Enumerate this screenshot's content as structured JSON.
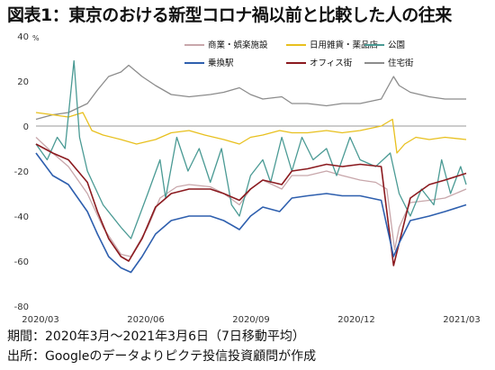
{
  "title": "図表1：東京のおける新型コロナ禍以前と比較した人の往来",
  "footnote_period": "期間：2020年3月～2021年3月6日（7日移動平均）",
  "footnote_source": "出所：Googleのデータよりピクテ投信投資顧問が作成",
  "chart_data": {
    "type": "line",
    "ylabel": "",
    "unit": "%",
    "ylim": [
      -80,
      40
    ],
    "yticks": [
      -80,
      -60,
      -40,
      -20,
      0,
      20,
      40
    ],
    "xticks": [
      "2020/03",
      "2020/06",
      "2020/09",
      "2020/12",
      "2021/03"
    ],
    "xrange": [
      "2020-02-15",
      "2021-03-06"
    ],
    "grid": false,
    "legend_position": "top",
    "series": [
      {
        "name": "商業・娯楽施設",
        "color": "#c8a7ab",
        "points": [
          [
            "2020-02-15",
            -5
          ],
          [
            "2020-03-01",
            -12
          ],
          [
            "2020-03-15",
            -18
          ],
          [
            "2020-04-01",
            -30
          ],
          [
            "2020-04-15",
            -45
          ],
          [
            "2020-05-01",
            -57
          ],
          [
            "2020-05-10",
            -58
          ],
          [
            "2020-05-25",
            -45
          ],
          [
            "2020-06-05",
            -32
          ],
          [
            "2020-06-20",
            -27
          ],
          [
            "2020-07-01",
            -26
          ],
          [
            "2020-07-20",
            -27
          ],
          [
            "2020-08-01",
            -30
          ],
          [
            "2020-08-15",
            -35
          ],
          [
            "2020-08-25",
            -28
          ],
          [
            "2020-09-05",
            -24
          ],
          [
            "2020-09-22",
            -28
          ],
          [
            "2020-10-01",
            -22
          ],
          [
            "2020-10-15",
            -22
          ],
          [
            "2020-11-01",
            -20
          ],
          [
            "2020-11-15",
            -22
          ],
          [
            "2020-12-01",
            -24
          ],
          [
            "2020-12-15",
            -25
          ],
          [
            "2020-12-25",
            -28
          ],
          [
            "2021-01-01",
            -55
          ],
          [
            "2021-01-05",
            -45
          ],
          [
            "2021-01-15",
            -34
          ],
          [
            "2021-02-01",
            -33
          ],
          [
            "2021-02-15",
            -32
          ],
          [
            "2021-03-06",
            -28
          ]
        ]
      },
      {
        "name": "日用雑貨・薬品店",
        "color": "#e8c01e",
        "points": [
          [
            "2020-02-15",
            6
          ],
          [
            "2020-03-01",
            5
          ],
          [
            "2020-03-15",
            4
          ],
          [
            "2020-03-28",
            6
          ],
          [
            "2020-04-05",
            -2
          ],
          [
            "2020-04-15",
            -4
          ],
          [
            "2020-05-01",
            -6
          ],
          [
            "2020-05-15",
            -8
          ],
          [
            "2020-06-01",
            -6
          ],
          [
            "2020-06-15",
            -3
          ],
          [
            "2020-07-01",
            -2
          ],
          [
            "2020-07-15",
            -4
          ],
          [
            "2020-08-01",
            -6
          ],
          [
            "2020-08-15",
            -8
          ],
          [
            "2020-08-25",
            -5
          ],
          [
            "2020-09-05",
            -4
          ],
          [
            "2020-09-20",
            -2
          ],
          [
            "2020-10-01",
            -3
          ],
          [
            "2020-10-15",
            -3
          ],
          [
            "2020-11-01",
            -2
          ],
          [
            "2020-11-15",
            -3
          ],
          [
            "2020-12-01",
            -2
          ],
          [
            "2020-12-20",
            0
          ],
          [
            "2020-12-30",
            3
          ],
          [
            "2021-01-03",
            -12
          ],
          [
            "2021-01-10",
            -8
          ],
          [
            "2021-01-20",
            -5
          ],
          [
            "2021-02-01",
            -6
          ],
          [
            "2021-02-15",
            -5
          ],
          [
            "2021-03-06",
            -6
          ]
        ]
      },
      {
        "name": "公園",
        "color": "#4a9a94",
        "points": [
          [
            "2020-02-15",
            -8
          ],
          [
            "2020-02-25",
            -15
          ],
          [
            "2020-03-05",
            -5
          ],
          [
            "2020-03-12",
            -10
          ],
          [
            "2020-03-20",
            29
          ],
          [
            "2020-03-25",
            -5
          ],
          [
            "2020-04-01",
            -20
          ],
          [
            "2020-04-15",
            -35
          ],
          [
            "2020-05-01",
            -45
          ],
          [
            "2020-05-10",
            -50
          ],
          [
            "2020-05-25",
            -30
          ],
          [
            "2020-06-05",
            -15
          ],
          [
            "2020-06-10",
            -32
          ],
          [
            "2020-06-20",
            -5
          ],
          [
            "2020-06-30",
            -20
          ],
          [
            "2020-07-10",
            -10
          ],
          [
            "2020-07-20",
            -25
          ],
          [
            "2020-07-30",
            -10
          ],
          [
            "2020-08-08",
            -35
          ],
          [
            "2020-08-15",
            -40
          ],
          [
            "2020-08-25",
            -22
          ],
          [
            "2020-09-05",
            -15
          ],
          [
            "2020-09-12",
            -25
          ],
          [
            "2020-09-22",
            -5
          ],
          [
            "2020-10-01",
            -20
          ],
          [
            "2020-10-10",
            -5
          ],
          [
            "2020-10-20",
            -15
          ],
          [
            "2020-11-01",
            -10
          ],
          [
            "2020-11-10",
            -22
          ],
          [
            "2020-11-22",
            -5
          ],
          [
            "2020-12-01",
            -15
          ],
          [
            "2020-12-15",
            -18
          ],
          [
            "2020-12-28",
            -12
          ],
          [
            "2021-01-05",
            -30
          ],
          [
            "2021-01-15",
            -40
          ],
          [
            "2021-01-25",
            -28
          ],
          [
            "2021-02-05",
            -35
          ],
          [
            "2021-02-12",
            -15
          ],
          [
            "2021-02-20",
            -30
          ],
          [
            "2021-03-01",
            -18
          ],
          [
            "2021-03-06",
            -26
          ]
        ]
      },
      {
        "name": "乗換駅",
        "color": "#2e5fae",
        "points": [
          [
            "2020-02-15",
            -12
          ],
          [
            "2020-03-01",
            -22
          ],
          [
            "2020-03-15",
            -26
          ],
          [
            "2020-04-01",
            -38
          ],
          [
            "2020-04-10",
            -48
          ],
          [
            "2020-04-20",
            -58
          ],
          [
            "2020-05-01",
            -63
          ],
          [
            "2020-05-10",
            -65
          ],
          [
            "2020-05-20",
            -58
          ],
          [
            "2020-06-01",
            -48
          ],
          [
            "2020-06-15",
            -42
          ],
          [
            "2020-07-01",
            -40
          ],
          [
            "2020-07-20",
            -40
          ],
          [
            "2020-08-01",
            -42
          ],
          [
            "2020-08-15",
            -46
          ],
          [
            "2020-08-25",
            -40
          ],
          [
            "2020-09-05",
            -36
          ],
          [
            "2020-09-20",
            -38
          ],
          [
            "2020-10-01",
            -32
          ],
          [
            "2020-10-15",
            -31
          ],
          [
            "2020-11-01",
            -30
          ],
          [
            "2020-11-15",
            -31
          ],
          [
            "2020-12-01",
            -31
          ],
          [
            "2020-12-20",
            -33
          ],
          [
            "2020-12-31",
            -58
          ],
          [
            "2021-01-05",
            -52
          ],
          [
            "2021-01-15",
            -42
          ],
          [
            "2021-02-01",
            -40
          ],
          [
            "2021-02-15",
            -38
          ],
          [
            "2021-03-06",
            -35
          ]
        ]
      },
      {
        "name": "オフィス街",
        "color": "#8b1a1f",
        "points": [
          [
            "2020-02-15",
            -8
          ],
          [
            "2020-03-01",
            -12
          ],
          [
            "2020-03-15",
            -15
          ],
          [
            "2020-04-01",
            -25
          ],
          [
            "2020-04-10",
            -38
          ],
          [
            "2020-04-20",
            -50
          ],
          [
            "2020-05-01",
            -58
          ],
          [
            "2020-05-08",
            -60
          ],
          [
            "2020-05-20",
            -50
          ],
          [
            "2020-06-01",
            -36
          ],
          [
            "2020-06-15",
            -30
          ],
          [
            "2020-07-01",
            -28
          ],
          [
            "2020-07-20",
            -28
          ],
          [
            "2020-08-01",
            -30
          ],
          [
            "2020-08-15",
            -33
          ],
          [
            "2020-08-25",
            -28
          ],
          [
            "2020-09-05",
            -24
          ],
          [
            "2020-09-22",
            -26
          ],
          [
            "2020-10-01",
            -20
          ],
          [
            "2020-10-15",
            -19
          ],
          [
            "2020-11-01",
            -17
          ],
          [
            "2020-11-15",
            -18
          ],
          [
            "2020-12-01",
            -17
          ],
          [
            "2020-12-20",
            -18
          ],
          [
            "2020-12-31",
            -62
          ],
          [
            "2021-01-05",
            -52
          ],
          [
            "2021-01-15",
            -32
          ],
          [
            "2021-02-01",
            -26
          ],
          [
            "2021-02-15",
            -24
          ],
          [
            "2021-03-06",
            -21
          ]
        ]
      },
      {
        "name": "住宅街",
        "color": "#8c8c8c",
        "points": [
          [
            "2020-02-15",
            3
          ],
          [
            "2020-03-01",
            5
          ],
          [
            "2020-03-15",
            6
          ],
          [
            "2020-04-01",
            10
          ],
          [
            "2020-04-10",
            16
          ],
          [
            "2020-04-20",
            22
          ],
          [
            "2020-05-01",
            24
          ],
          [
            "2020-05-08",
            27
          ],
          [
            "2020-05-20",
            22
          ],
          [
            "2020-06-01",
            18
          ],
          [
            "2020-06-15",
            14
          ],
          [
            "2020-07-01",
            13
          ],
          [
            "2020-07-20",
            14
          ],
          [
            "2020-08-01",
            15
          ],
          [
            "2020-08-15",
            17
          ],
          [
            "2020-08-25",
            14
          ],
          [
            "2020-09-05",
            12
          ],
          [
            "2020-09-22",
            13
          ],
          [
            "2020-10-01",
            10
          ],
          [
            "2020-10-15",
            10
          ],
          [
            "2020-11-01",
            9
          ],
          [
            "2020-11-15",
            10
          ],
          [
            "2020-12-01",
            10
          ],
          [
            "2020-12-20",
            12
          ],
          [
            "2020-12-31",
            22
          ],
          [
            "2021-01-05",
            18
          ],
          [
            "2021-01-15",
            15
          ],
          [
            "2021-02-01",
            13
          ],
          [
            "2021-02-15",
            12
          ],
          [
            "2021-03-06",
            12
          ]
        ]
      }
    ]
  }
}
